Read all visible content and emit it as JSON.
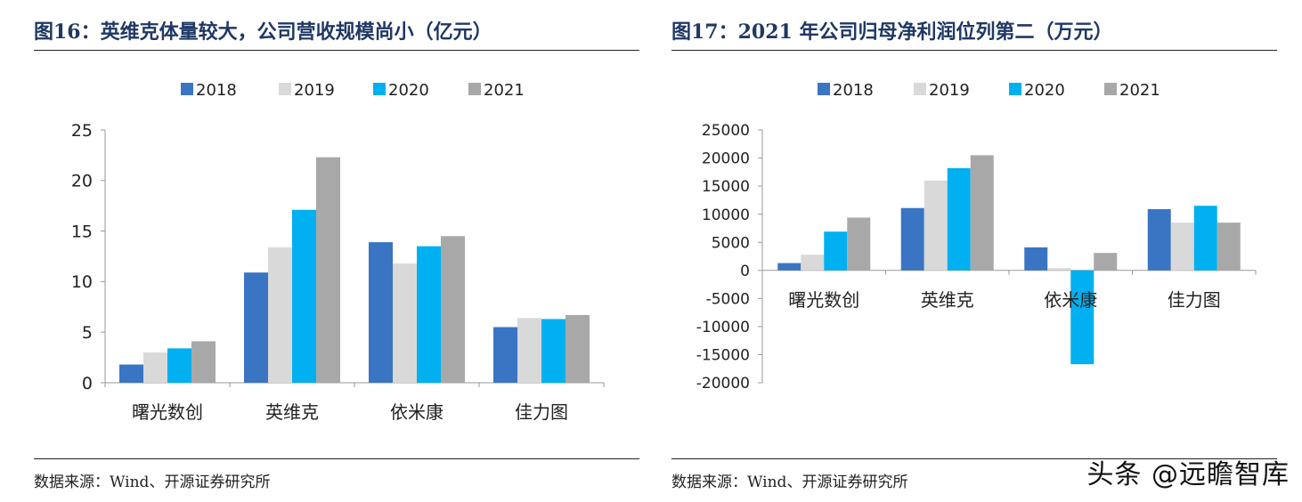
{
  "colors": {
    "2018": "#3a75c4",
    "2019": "#d9d9d9",
    "2020": "#00b0f0",
    "2021": "#a9a8a8",
    "title": "#1f3864"
  },
  "left": {
    "title": "图16：英维克体量较大，公司营收规模尚小（亿元）",
    "source": "数据来源：Wind、开源证券研究所"
  },
  "right": {
    "title": "图17：2021 年公司归母净利润位列第二（万元）",
    "source": "数据来源：Wind、开源证券研究所"
  },
  "watermark": "头条 @远瞻智库",
  "chart_data": [
    {
      "type": "bar",
      "title": "图16：英维克体量较大，公司营收规模尚小（亿元）",
      "categories": [
        "曙光数创",
        "英维克",
        "依米康",
        "佳力图"
      ],
      "series": [
        {
          "name": "2018",
          "values": [
            1.8,
            10.9,
            13.9,
            5.5
          ]
        },
        {
          "name": "2019",
          "values": [
            3.0,
            13.4,
            11.8,
            6.4
          ]
        },
        {
          "name": "2020",
          "values": [
            3.4,
            17.1,
            13.5,
            6.3
          ]
        },
        {
          "name": "2021",
          "values": [
            4.1,
            22.3,
            14.5,
            6.7
          ]
        }
      ],
      "ylim": [
        0,
        25
      ],
      "yticks": [
        0,
        5,
        10,
        15,
        20,
        25
      ],
      "ytick_labels": [
        "0",
        "5",
        "10",
        "15",
        "20",
        "25"
      ],
      "legend": "top-center"
    },
    {
      "type": "bar",
      "title": "图17：2021 年公司归母净利润位列第二（万元）",
      "categories": [
        "曙光数创",
        "英维克",
        "依米康",
        "佳力图"
      ],
      "series": [
        {
          "name": "2018",
          "values": [
            1300,
            11100,
            4100,
            10900
          ]
        },
        {
          "name": "2019",
          "values": [
            2800,
            16000,
            400,
            8500
          ]
        },
        {
          "name": "2020",
          "values": [
            6900,
            18200,
            -16700,
            11500
          ]
        },
        {
          "name": "2021",
          "values": [
            9400,
            20500,
            3100,
            8500
          ]
        }
      ],
      "ylim": [
        -20000,
        25000
      ],
      "yticks": [
        -20000,
        -15000,
        -10000,
        -5000,
        0,
        5000,
        10000,
        15000,
        20000,
        25000
      ],
      "ytick_labels": [
        "-20000",
        "-15000",
        "-10000",
        "-5000",
        "0",
        "5000",
        "10000",
        "15000",
        "20000",
        "25000"
      ],
      "legend": "top-center"
    }
  ]
}
